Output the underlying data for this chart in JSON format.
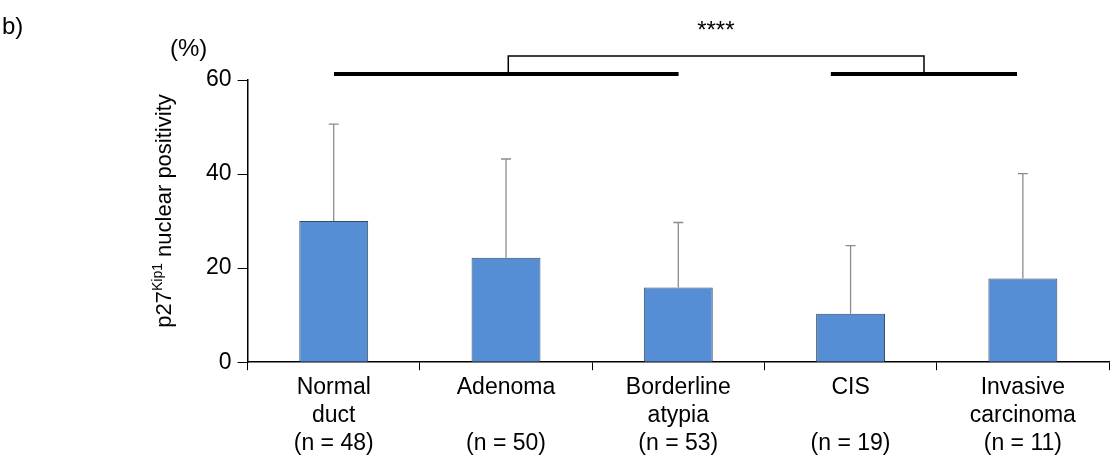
{
  "chart_data": {
    "type": "bar",
    "ylabel": "p27$^{Kip1}$ nuclear positivity",
    "categories": [
      "Normal\nduct\n(n = 48)",
      "Adenoma\n\n(n = 50)",
      "Borderline\natypia\n(n = 53)",
      "CIS\n\n(n = 19)",
      "Invasive\ncarcinoma\n(n = 11)"
    ],
    "values": [
      30,
      22.2,
      15.9,
      10.3,
      17.8
    ],
    "errors": [
      [
        30,
        50.6
      ],
      [
        22.2,
        43.2
      ],
      [
        15.9,
        29.7
      ],
      [
        10.3,
        24.8
      ],
      [
        17.8,
        40.1
      ]
    ],
    "color": "#558ed5",
    "ylim": [
      0,
      60
    ],
    "yticks": [
      0,
      20,
      40,
      60
    ],
    "grid": false,
    "legend": false,
    "annotations": [
      "b)",
      "(%)",
      "****"
    ]
  }
}
